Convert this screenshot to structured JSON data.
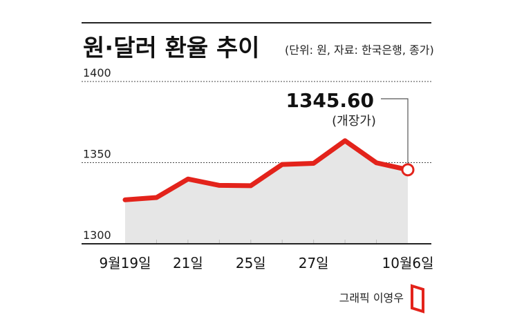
{
  "header": {
    "title": "원·달러 환율 추이",
    "subtitle": "(단위: 원, 자료: 한국은행, 종가)"
  },
  "callout": {
    "value": "1345.60",
    "note": "(개장가)"
  },
  "credit": "그래픽 이영우",
  "colors": {
    "line": "#e3231b",
    "area": "#e6e6e6",
    "axis": "#222222",
    "dashed_grid": "#444444",
    "divider": "#bdbdbd"
  },
  "chart_data": {
    "type": "line",
    "title": "원·달러 환율 추이",
    "unit": "원",
    "ylim": [
      1300,
      1400
    ],
    "yticks": [
      1400,
      1350,
      1300
    ],
    "grid": "dashed at 1400 and 1350",
    "x_labels": [
      "9월19일",
      "21일",
      "25일",
      "27일",
      "10월6일"
    ],
    "x_label_indices": [
      0,
      2,
      4,
      6,
      9
    ],
    "values": [
      1327.1,
      1328.5,
      1339.9,
      1336.0,
      1335.8,
      1348.9,
      1349.6,
      1363.5,
      1349.9,
      1345.6
    ],
    "last_point_marker": "hollow circle",
    "fill_below_line": true
  }
}
